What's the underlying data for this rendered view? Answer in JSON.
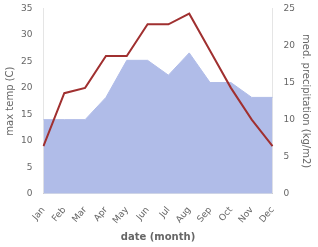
{
  "chart_data": {
    "type": "line",
    "categories": [
      "Jan",
      "Feb",
      "Mar",
      "Apr",
      "May",
      "Jun",
      "Jul",
      "Aug",
      "Sep",
      "Oct",
      "Nov",
      "Dec"
    ],
    "series": [
      {
        "type": "area",
        "axis": "y2",
        "color": "#b0bce8",
        "values": [
          10,
          10,
          10,
          13,
          18,
          18,
          16,
          19,
          15,
          15,
          13,
          13
        ]
      },
      {
        "type": "line",
        "axis": "y",
        "color": "#a03030",
        "values": [
          9,
          19,
          20,
          26,
          26,
          32,
          32,
          34,
          27,
          20,
          14,
          9
        ]
      }
    ],
    "xlabel": "date (month)",
    "ylabel": "max temp (C)",
    "y2label": "med. precipitation (kg/m2)",
    "ylim": [
      0,
      35
    ],
    "yticks": [
      0,
      5,
      10,
      15,
      20,
      25,
      30,
      35
    ],
    "y2lim": [
      0,
      25
    ],
    "y2ticks": [
      0,
      5,
      10,
      15,
      20,
      25
    ],
    "grid": false
  }
}
